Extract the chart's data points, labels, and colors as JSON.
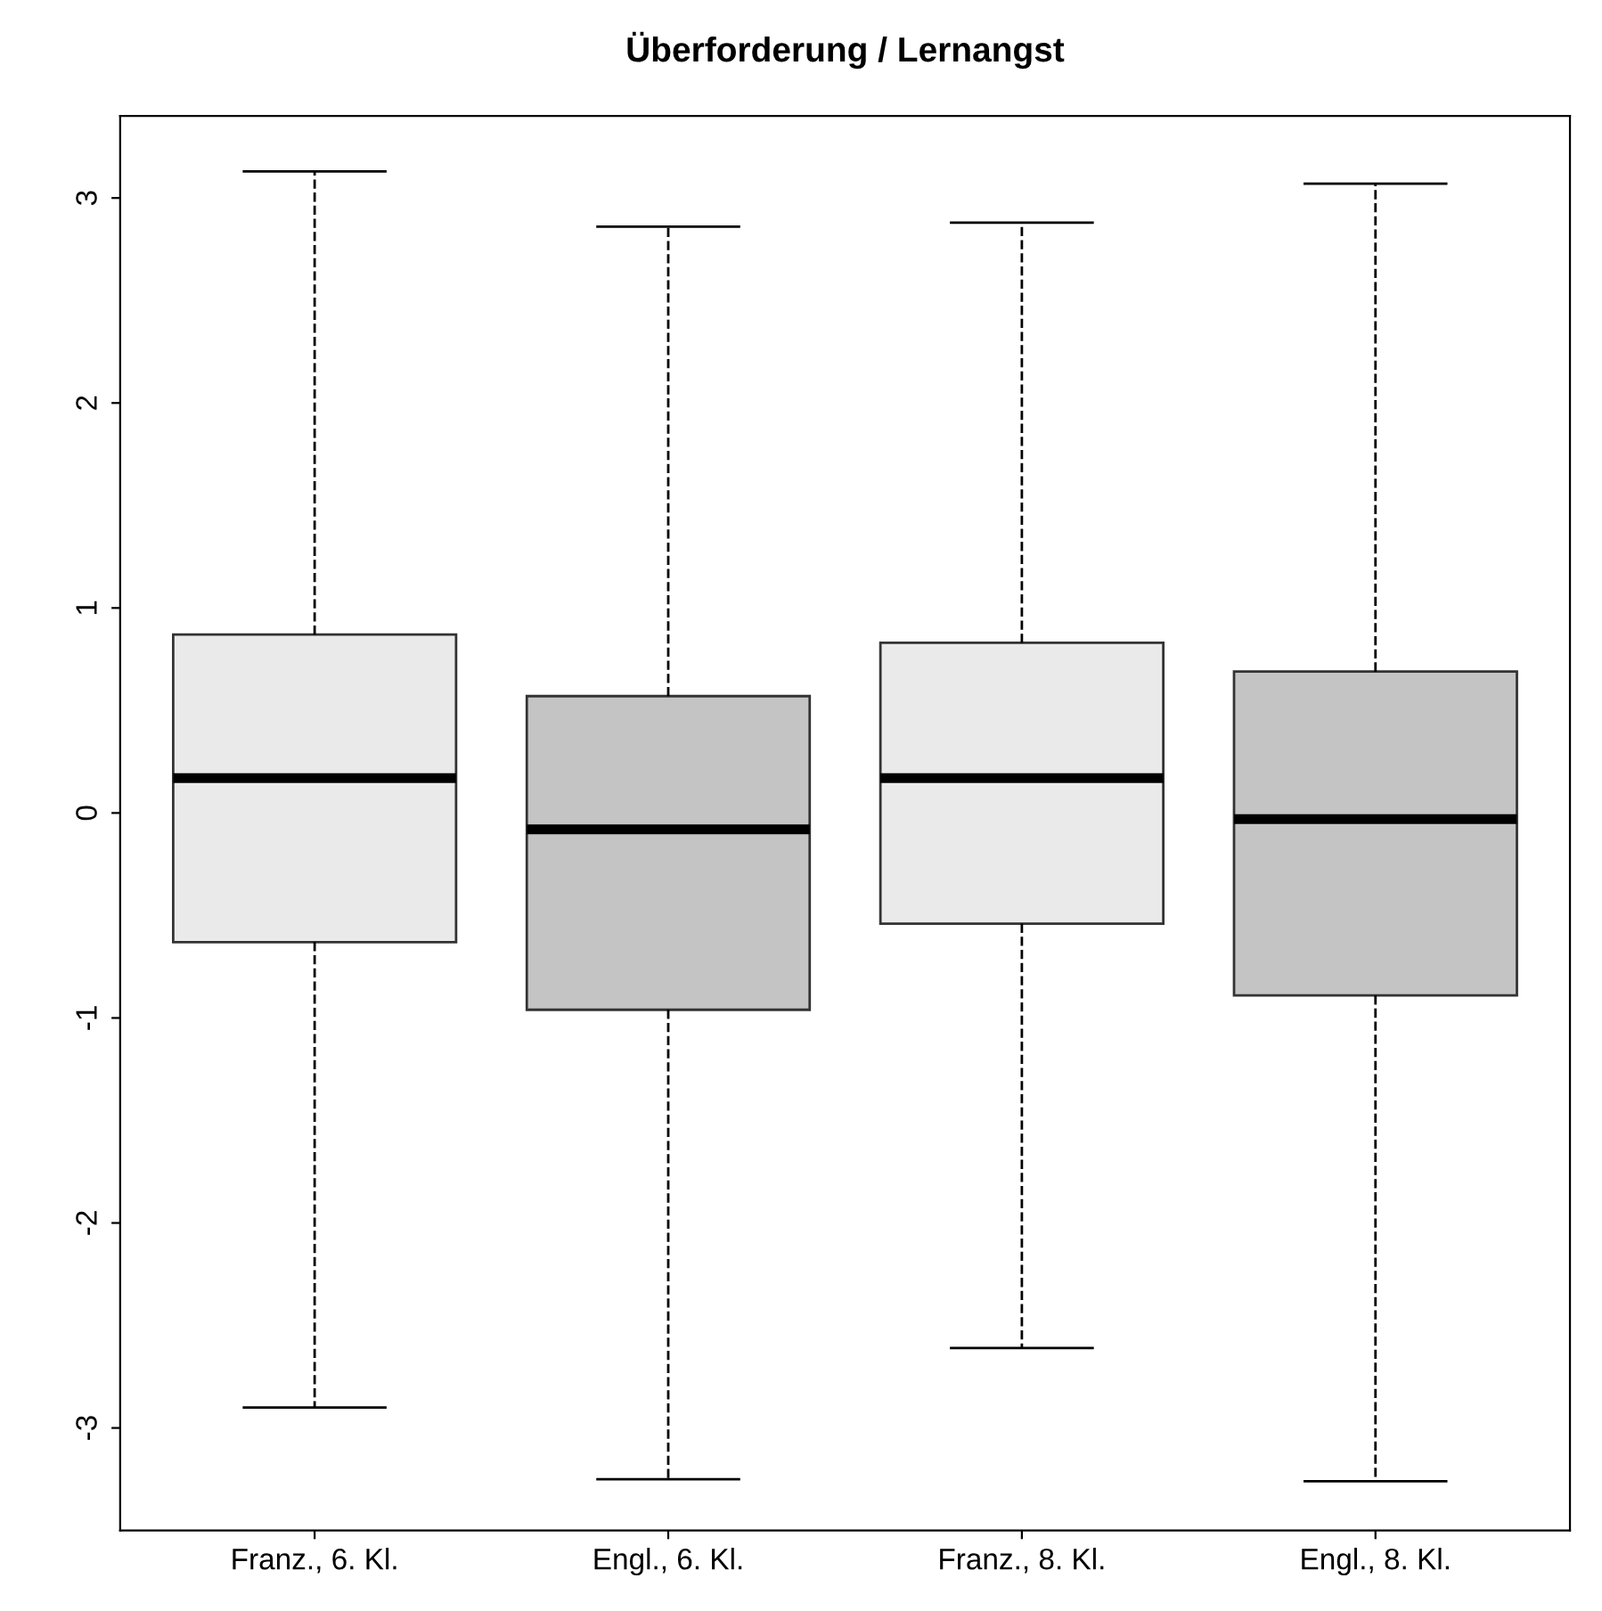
{
  "chart_data": {
    "type": "box",
    "title": "Überforderung / Lernangst",
    "categories": [
      "Franz., 6. Kl.",
      "Engl., 6. Kl.",
      "Franz., 8. Kl.",
      "Engl., 8. Kl."
    ],
    "boxes": [
      {
        "low": -2.9,
        "q1": -0.63,
        "median": 0.17,
        "q3": 0.87,
        "high": 3.13
      },
      {
        "low": -3.25,
        "q1": -0.96,
        "median": -0.08,
        "q3": 0.57,
        "high": 2.86
      },
      {
        "low": -2.61,
        "q1": -0.54,
        "median": 0.17,
        "q3": 0.83,
        "high": 2.88
      },
      {
        "low": -3.26,
        "q1": -0.89,
        "median": -0.03,
        "q3": 0.69,
        "high": 3.07
      }
    ],
    "colors": [
      "#eaeaea",
      "#c4c4c4",
      "#eaeaea",
      "#c4c4c4"
    ],
    "ylim": [
      -3.5,
      3.4
    ],
    "yticks": [
      -3,
      -2,
      -1,
      0,
      1,
      2,
      3
    ],
    "line_style": "dashed",
    "grid": false
  }
}
